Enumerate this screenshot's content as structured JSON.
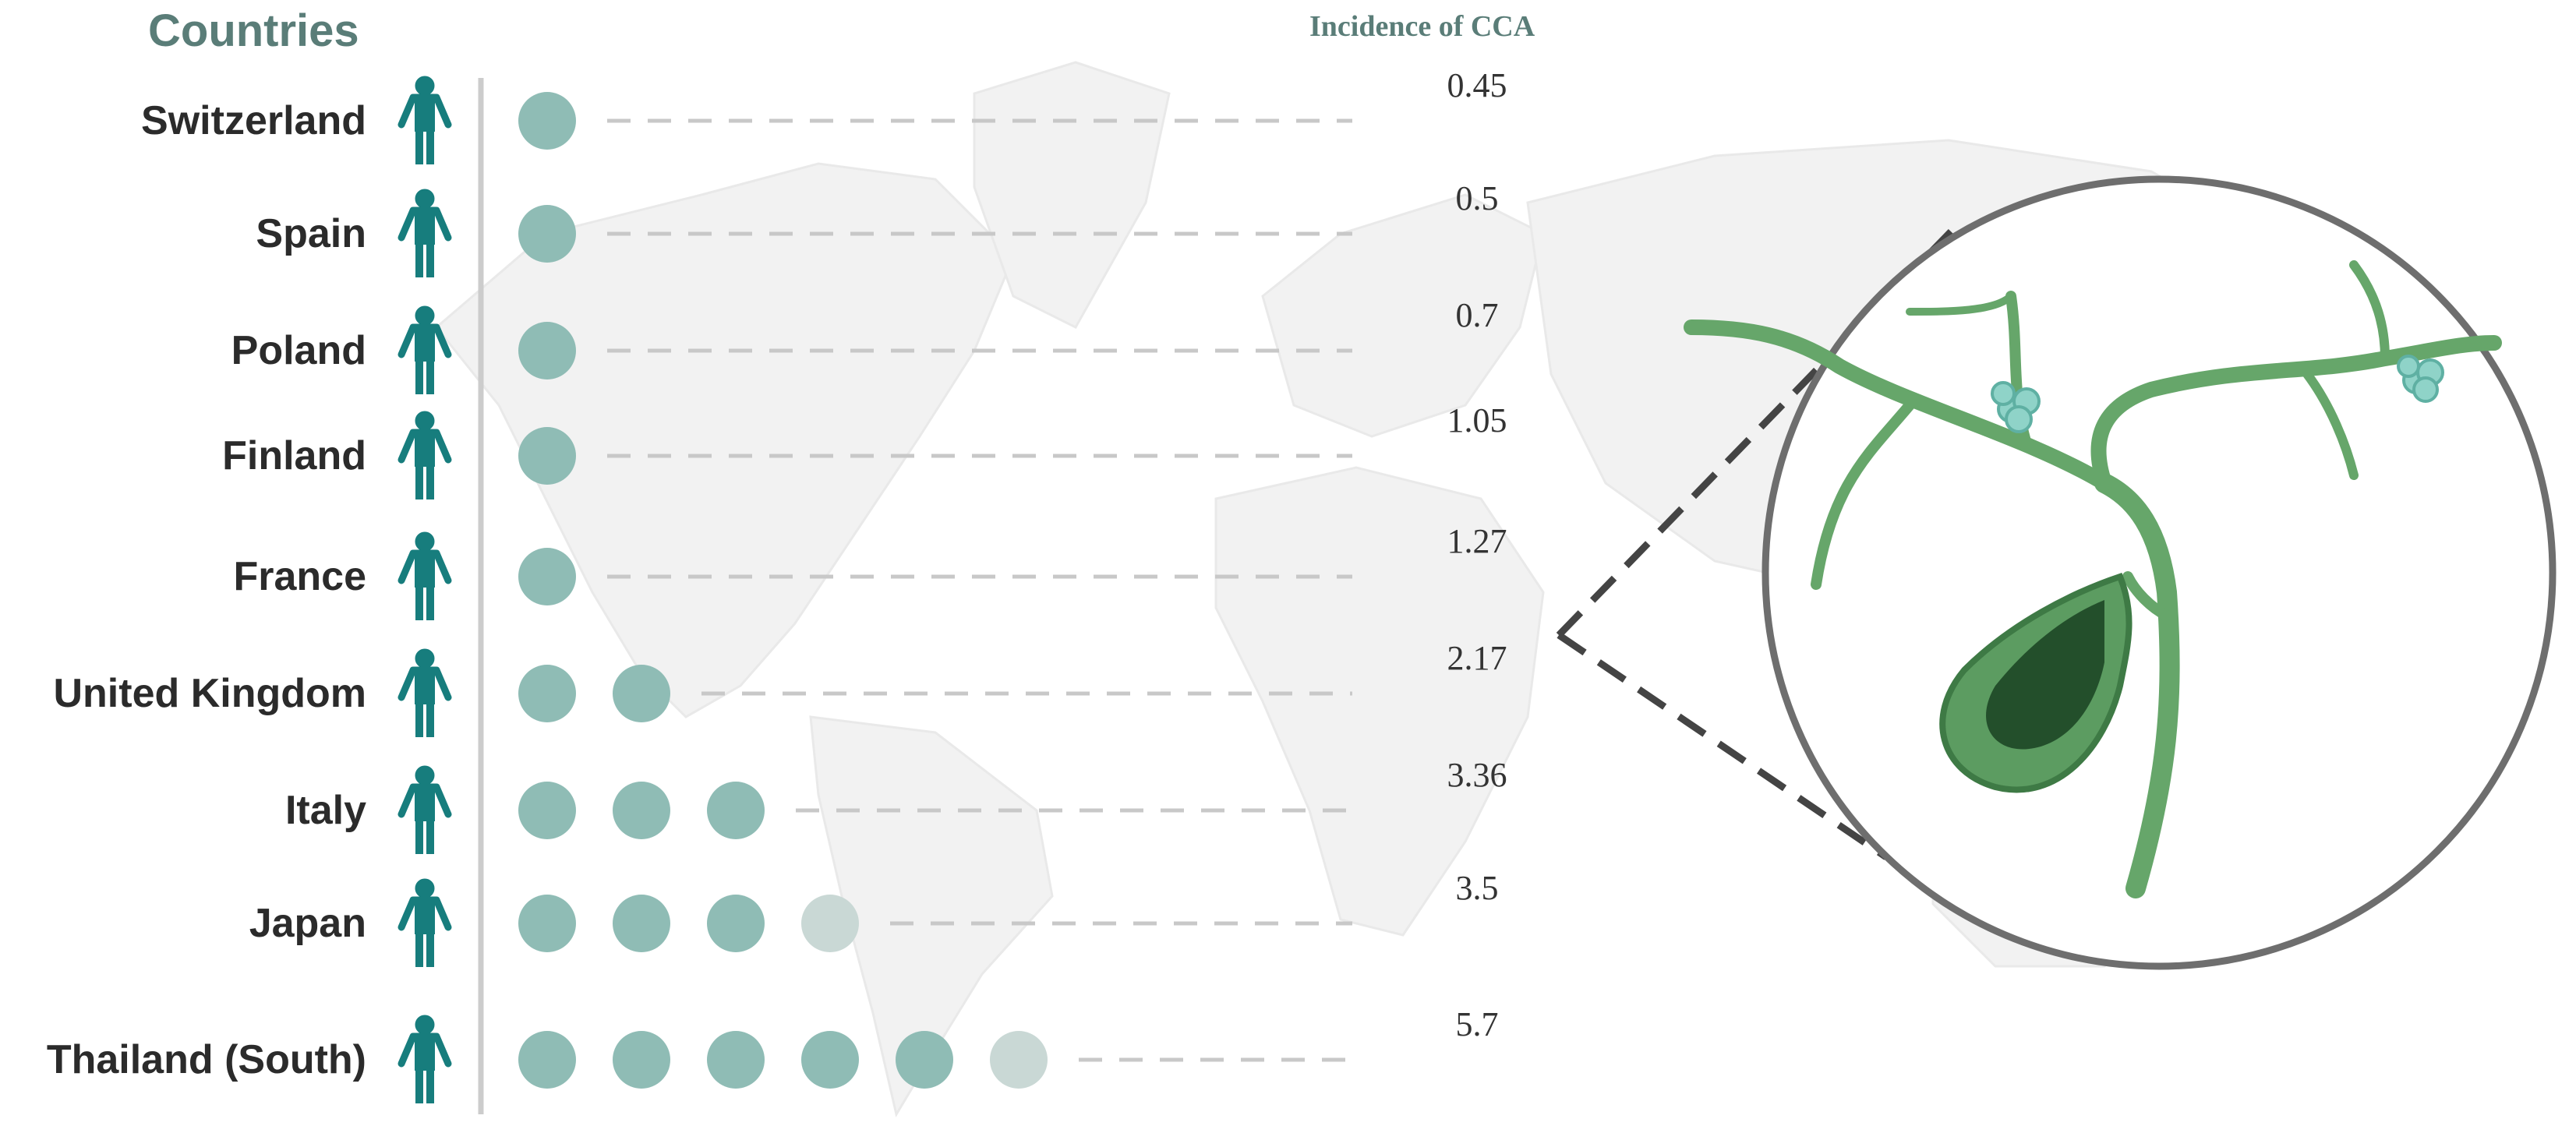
{
  "header": {
    "countries_title": "Countries",
    "incidence_title": "Incidence of CCA"
  },
  "chart_data": {
    "type": "pictogram",
    "title": "",
    "categories": [
      "Switzerland",
      "Spain",
      "Poland",
      "Finland",
      "France",
      "United Kingdom",
      "Italy",
      "Japan",
      "Thailand (South)"
    ],
    "values": [
      0.45,
      0.5,
      0.7,
      1.05,
      1.27,
      2.17,
      3.36,
      3.5,
      5.7
    ],
    "value_labels": [
      "0.45",
      "0.5",
      "0.7",
      "1.05",
      "1.27",
      "2.17",
      "3.36",
      "3.5",
      "5.7"
    ],
    "dot_unit": 1,
    "legend": "none",
    "grid": false
  },
  "colors": {
    "dot": "#8fbcb5",
    "dot_partial": "#c9d8d5",
    "person_icon": "#177d7d",
    "heading": "#5a7d78",
    "country_text": "#2b2b2b",
    "axis_line": "#cccccc",
    "leader_line": "#c8c8c8",
    "map_land": "#f2f2f2",
    "circle_border": "#6e6e6e",
    "duct": "#66a66a",
    "gallbladder": "#4e8f53"
  },
  "icons": {
    "row_icon": "person-icon",
    "background": "world-map",
    "illustration": "bile-duct-gallbladder"
  }
}
